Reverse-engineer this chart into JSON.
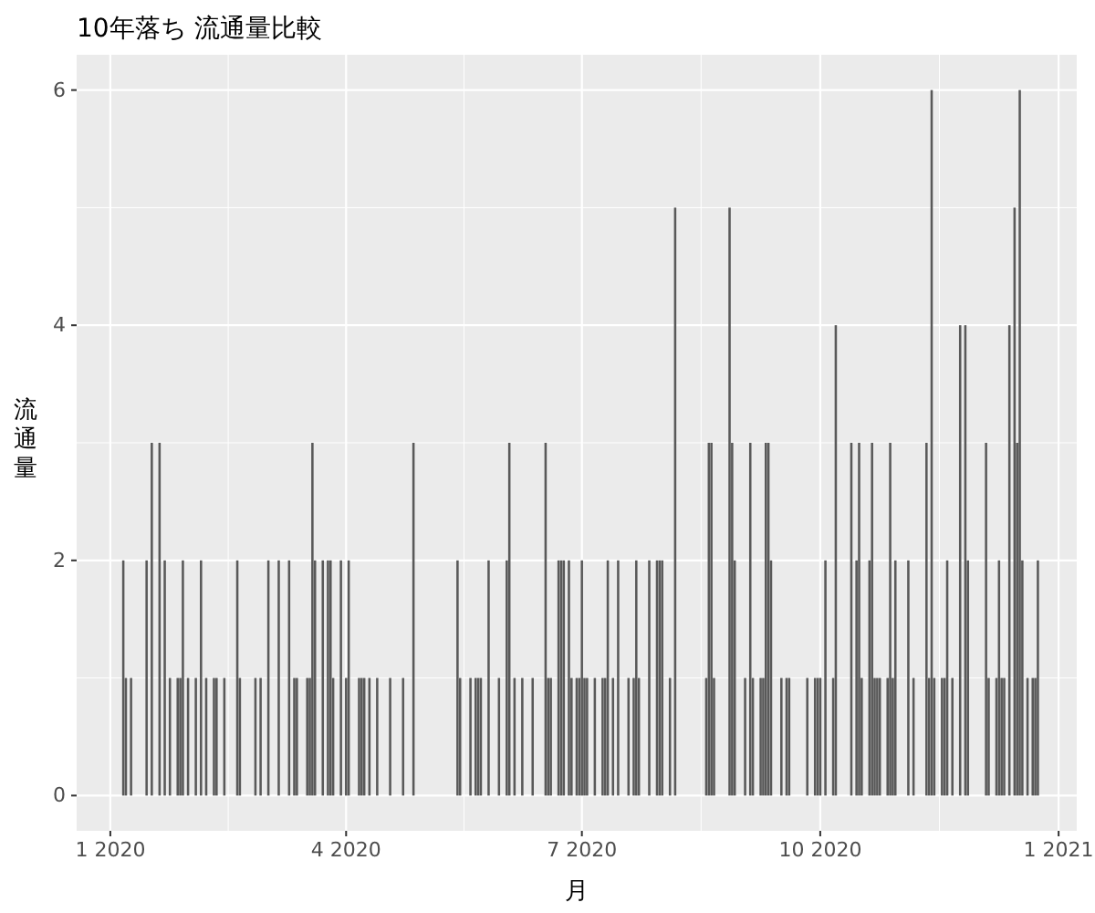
{
  "chart_data": {
    "type": "bar",
    "title": "10年落ち 流通量比較",
    "xlabel": "月",
    "ylabel": "流通量",
    "color": "#595959",
    "grid": true,
    "xlim": [
      "2019-12-19",
      "2021-01-08"
    ],
    "xticks": [
      {
        "value": "2020-01-01",
        "label": "1 2020"
      },
      {
        "value": "2020-04-01",
        "label": "4 2020"
      },
      {
        "value": "2020-07-01",
        "label": "7 2020"
      },
      {
        "value": "2020-10-01",
        "label": "10 2020"
      },
      {
        "value": "2021-01-01",
        "label": "1 2021"
      }
    ],
    "ylim": [
      -0.3,
      6.3
    ],
    "yticks": [
      0,
      2,
      4,
      6
    ],
    "x": [
      "2020-01-06",
      "2020-01-07",
      "2020-01-09",
      "2020-01-15",
      "2020-01-17",
      "2020-01-20",
      "2020-01-22",
      "2020-01-24",
      "2020-01-27",
      "2020-01-28",
      "2020-01-29",
      "2020-01-31",
      "2020-02-03",
      "2020-02-05",
      "2020-02-07",
      "2020-02-10",
      "2020-02-11",
      "2020-02-14",
      "2020-02-19",
      "2020-02-20",
      "2020-02-26",
      "2020-02-28",
      "2020-03-02",
      "2020-03-06",
      "2020-03-10",
      "2020-03-12",
      "2020-03-13",
      "2020-03-17",
      "2020-03-18",
      "2020-03-19",
      "2020-03-20",
      "2020-03-23",
      "2020-03-25",
      "2020-03-26",
      "2020-03-27",
      "2020-03-30",
      "2020-04-01",
      "2020-04-02",
      "2020-04-06",
      "2020-04-07",
      "2020-04-08",
      "2020-04-10",
      "2020-04-13",
      "2020-04-18",
      "2020-04-23",
      "2020-04-27",
      "2020-05-14",
      "2020-05-15",
      "2020-05-19",
      "2020-05-21",
      "2020-05-22",
      "2020-05-23",
      "2020-05-26",
      "2020-05-30",
      "2020-06-02",
      "2020-06-03",
      "2020-06-05",
      "2020-06-08",
      "2020-06-12",
      "2020-06-17",
      "2020-06-18",
      "2020-06-19",
      "2020-06-22",
      "2020-06-23",
      "2020-06-24",
      "2020-06-26",
      "2020-06-27",
      "2020-06-29",
      "2020-06-30",
      "2020-07-01",
      "2020-07-02",
      "2020-07-03",
      "2020-07-06",
      "2020-07-09",
      "2020-07-10",
      "2020-07-11",
      "2020-07-13",
      "2020-07-15",
      "2020-07-19",
      "2020-07-21",
      "2020-07-22",
      "2020-07-23",
      "2020-07-27",
      "2020-07-30",
      "2020-07-31",
      "2020-08-01",
      "2020-08-04",
      "2020-08-06",
      "2020-08-18",
      "2020-08-19",
      "2020-08-20",
      "2020-08-21",
      "2020-08-27",
      "2020-08-28",
      "2020-08-29",
      "2020-09-02",
      "2020-09-04",
      "2020-09-05",
      "2020-09-08",
      "2020-09-09",
      "2020-09-10",
      "2020-09-11",
      "2020-09-12",
      "2020-09-16",
      "2020-09-18",
      "2020-09-19",
      "2020-09-26",
      "2020-09-29",
      "2020-09-30",
      "2020-10-01",
      "2020-10-03",
      "2020-10-06",
      "2020-10-07",
      "2020-10-13",
      "2020-10-15",
      "2020-10-16",
      "2020-10-17",
      "2020-10-20",
      "2020-10-21",
      "2020-10-22",
      "2020-10-23",
      "2020-10-24",
      "2020-10-27",
      "2020-10-28",
      "2020-10-29",
      "2020-10-30",
      "2020-11-04",
      "2020-11-06",
      "2020-11-11",
      "2020-11-12",
      "2020-11-13",
      "2020-11-14",
      "2020-11-17",
      "2020-11-18",
      "2020-11-19",
      "2020-11-21",
      "2020-11-24",
      "2020-11-26",
      "2020-11-27",
      "2020-12-04",
      "2020-12-05",
      "2020-12-08",
      "2020-12-09",
      "2020-12-10",
      "2020-12-11",
      "2020-12-13",
      "2020-12-15",
      "2020-12-16",
      "2020-12-17",
      "2020-12-18",
      "2020-12-20",
      "2020-12-22",
      "2020-12-23",
      "2020-12-24"
    ],
    "values": [
      2,
      1,
      1,
      2,
      3,
      3,
      2,
      1,
      1,
      1,
      2,
      1,
      1,
      2,
      1,
      1,
      1,
      1,
      2,
      1,
      1,
      1,
      2,
      2,
      2,
      1,
      1,
      1,
      1,
      3,
      2,
      2,
      2,
      2,
      1,
      2,
      1,
      2,
      1,
      1,
      1,
      1,
      1,
      1,
      1,
      3,
      2,
      1,
      1,
      1,
      1,
      1,
      2,
      1,
      2,
      3,
      1,
      1,
      1,
      3,
      1,
      1,
      2,
      2,
      2,
      2,
      1,
      1,
      1,
      2,
      1,
      1,
      1,
      1,
      1,
      2,
      1,
      2,
      1,
      1,
      2,
      1,
      2,
      2,
      2,
      2,
      1,
      5,
      1,
      3,
      3,
      1,
      5,
      3,
      2,
      1,
      3,
      1,
      1,
      1,
      3,
      3,
      2,
      1,
      1,
      1,
      1,
      1,
      1,
      1,
      2,
      1,
      4,
      3,
      2,
      3,
      1,
      2,
      3,
      1,
      1,
      1,
      1,
      3,
      1,
      2,
      2,
      1,
      3,
      1,
      6,
      1,
      1,
      1,
      2,
      1,
      4,
      4,
      2,
      3,
      1,
      1,
      2,
      1,
      1,
      4,
      5,
      3,
      6,
      2,
      1,
      1,
      1,
      2
    ]
  }
}
